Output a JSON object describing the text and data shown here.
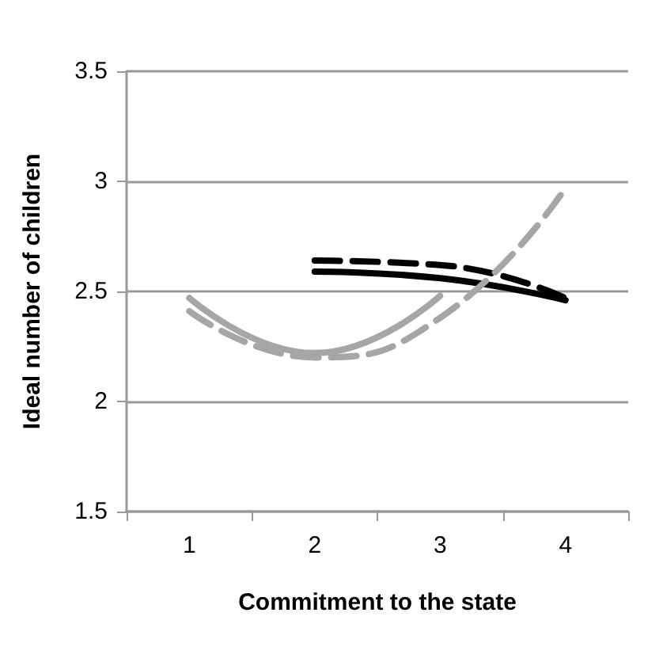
{
  "chart_data": {
    "type": "line",
    "xlabel": "Commitment to the state",
    "ylabel": "Ideal number of children",
    "categories": [
      "1",
      "2",
      "3",
      "4"
    ],
    "series": [
      {
        "color": "#000000",
        "line_style": "solid",
        "values": [
          null,
          2.59,
          2.56,
          2.46
        ]
      },
      {
        "color": "#000000",
        "line_style": "dashed",
        "values": [
          null,
          2.64,
          2.62,
          2.47
        ]
      },
      {
        "color": "#a6a6a6",
        "line_style": "solid",
        "values": [
          2.47,
          2.22,
          2.48,
          null
        ]
      },
      {
        "color": "#a6a6a6",
        "line_style": "dashed",
        "values": [
          2.41,
          2.2,
          2.38,
          2.97
        ]
      }
    ],
    "ylim": [
      1.5,
      3.5
    ],
    "yticks": [
      1.5,
      2,
      2.5,
      3,
      3.5
    ],
    "grid": "y",
    "marker": "none"
  }
}
